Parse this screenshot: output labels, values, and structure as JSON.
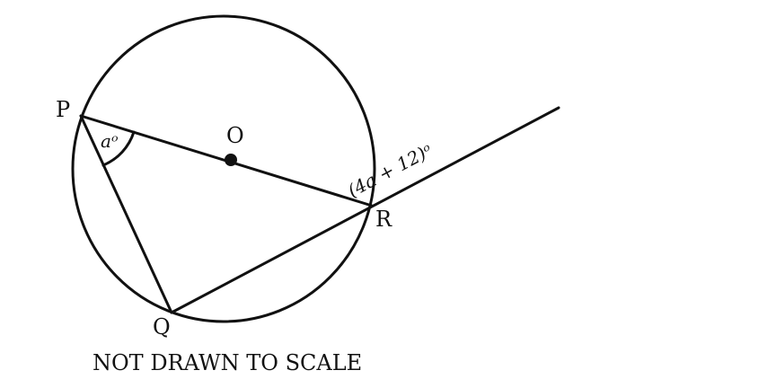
{
  "diagram": {
    "points": {
      "P": "P",
      "O": "O",
      "R": "R",
      "Q": "Q"
    },
    "angles": {
      "at_P": "aᵒ",
      "exterior_at_R": "(4a + 12)ᵒ"
    },
    "caption": "NOT DRAWN TO SCALE"
  }
}
